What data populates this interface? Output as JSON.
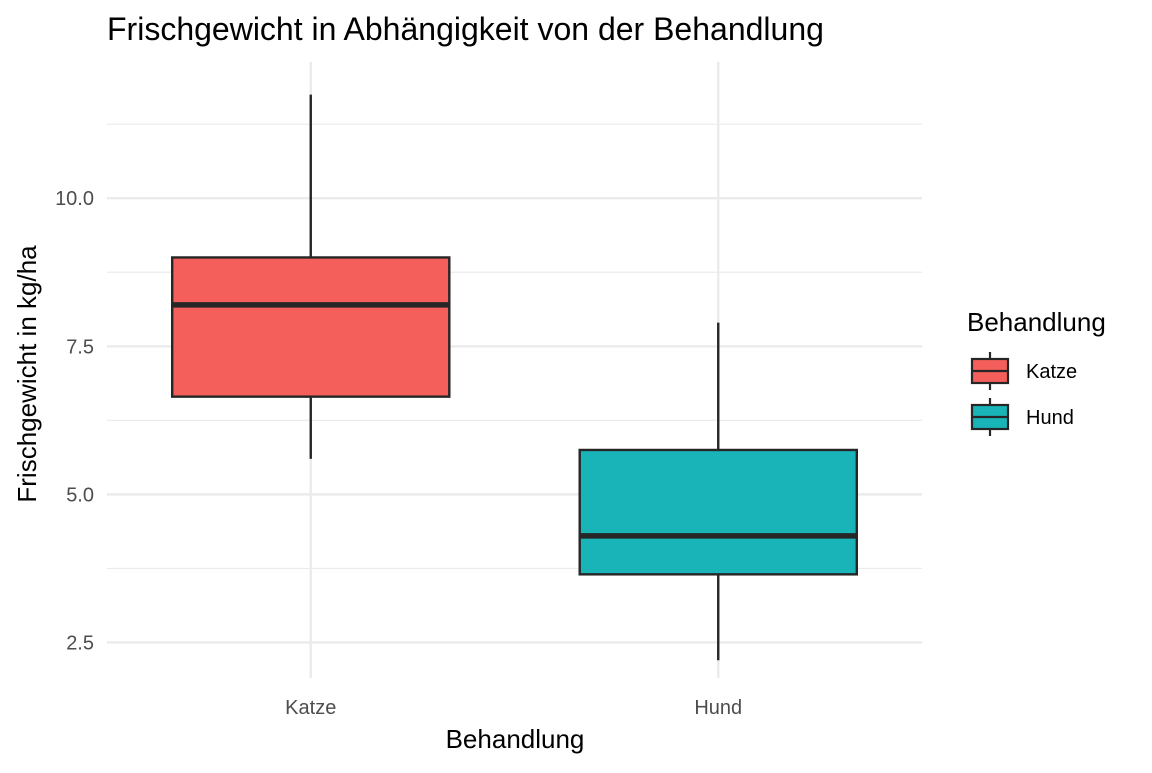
{
  "chart_data": {
    "type": "boxplot",
    "title": "Frischgewicht in Abhängigkeit von der Behandlung",
    "xlabel": "Behandlung",
    "ylabel": "Frischgewicht in kg/ha",
    "categories": [
      "Katze",
      "Hund"
    ],
    "ylim": [
      1.9,
      12.3
    ],
    "yticks": [
      2.5,
      5.0,
      7.5,
      10.0
    ],
    "ytick_labels": [
      "2.5",
      "5.0",
      "7.5",
      "10.0"
    ],
    "grid": true,
    "legend": {
      "title": "Behandlung",
      "position": "right",
      "entries": [
        "Katze",
        "Hund"
      ]
    },
    "colors": {
      "Katze": "#F45F5B",
      "Hund": "#19B4B8",
      "outline": "#262626",
      "grid": "#EBEBEB"
    },
    "boxes": [
      {
        "category": "Katze",
        "lower_whisker": 5.6,
        "q1": 6.65,
        "median": 8.2,
        "q3": 9.0,
        "upper_whisker": 11.75
      },
      {
        "category": "Hund",
        "lower_whisker": 2.2,
        "q1": 3.65,
        "median": 4.3,
        "q3": 5.75,
        "upper_whisker": 7.9
      }
    ]
  }
}
